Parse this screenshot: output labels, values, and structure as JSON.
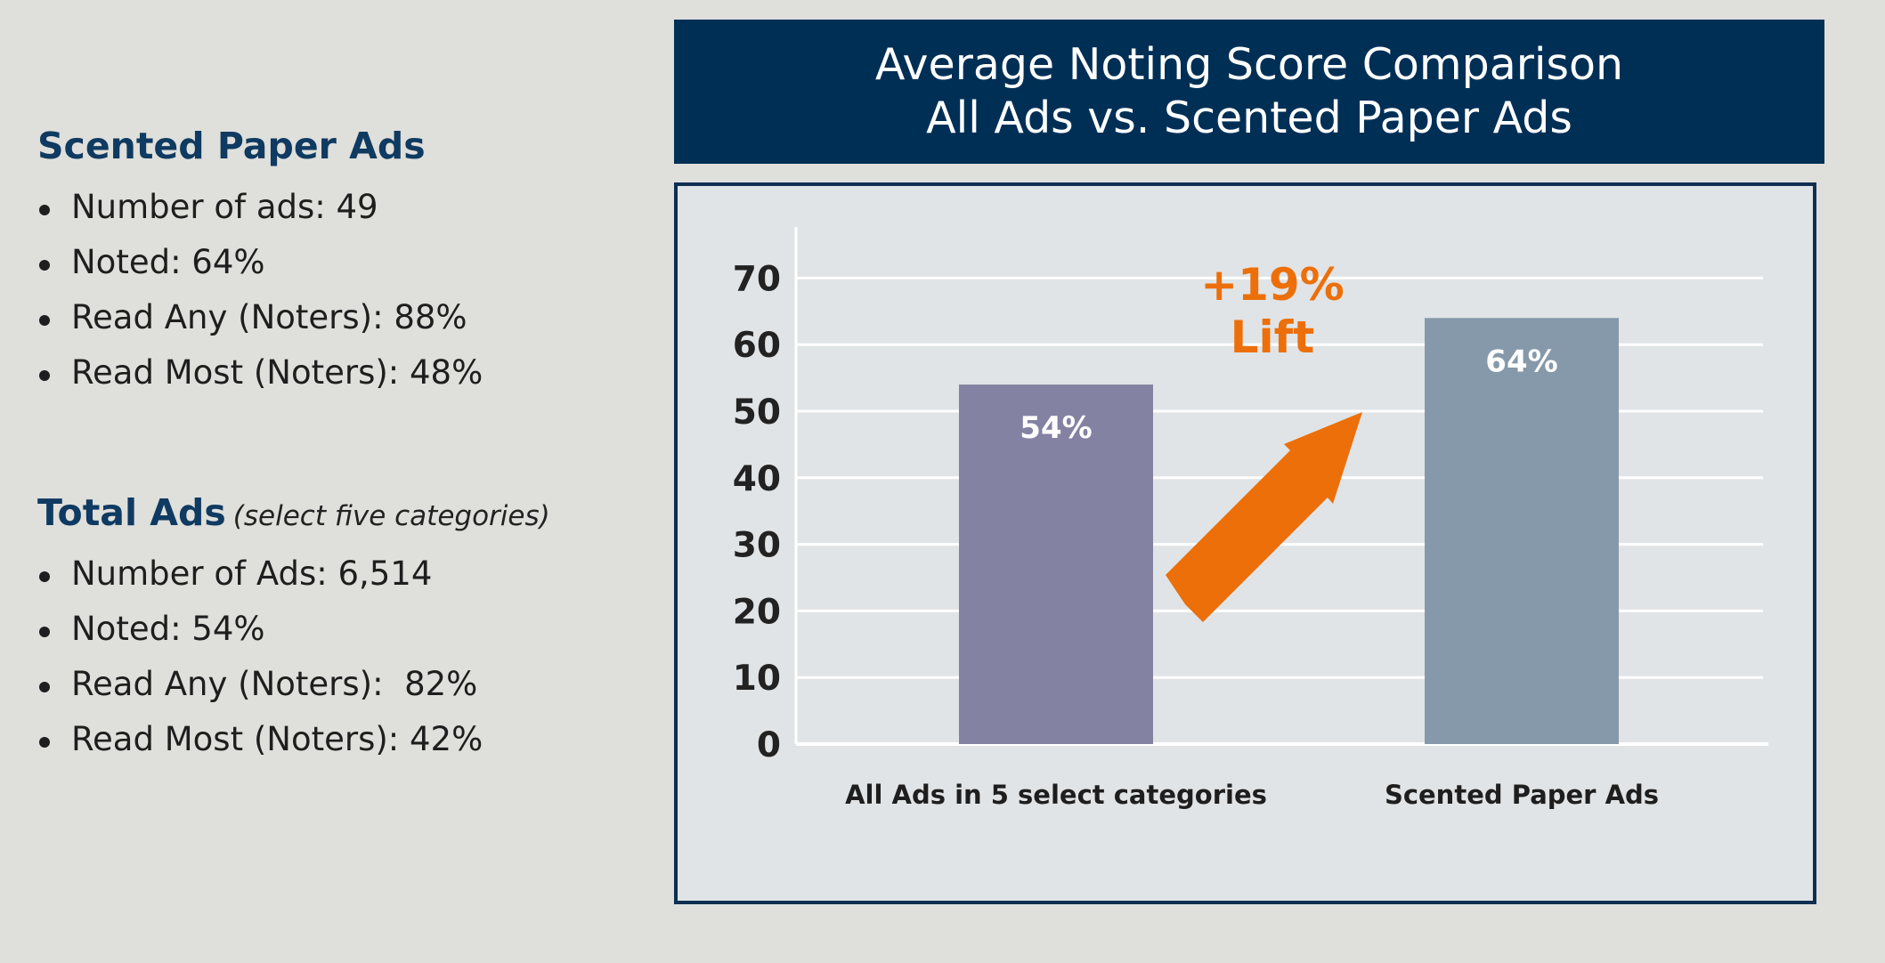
{
  "left_panel": {
    "scented": {
      "heading": "Scented Paper Ads",
      "items": [
        "Number of ads: 49",
        "Noted: 64%",
        "Read Any (Noters): 88%",
        "Read Most (Noters): 48%"
      ]
    },
    "total": {
      "heading": "Total Ads",
      "note": "(select five categories)",
      "items": [
        "Number of Ads: 6,514",
        "Noted: 54%",
        "Read Any (Noters):  82%",
        "Read Most (Noters): 42%"
      ]
    }
  },
  "chart_data": {
    "type": "bar",
    "title": "Average Noting Score Comparison",
    "subtitle": "All Ads vs. Scented Paper Ads",
    "categories": [
      "All Ads in 5 select categories",
      "Scented Paper Ads"
    ],
    "values": [
      54,
      64
    ],
    "data_labels": [
      "54%",
      "64%"
    ],
    "yticks": [
      0,
      10,
      20,
      30,
      40,
      50,
      60,
      70
    ],
    "ylim": [
      0,
      78
    ],
    "grid": true,
    "annotation": {
      "line1": "+19%",
      "line2": "Lift"
    },
    "colors": {
      "bars": [
        "#8482a3",
        "#8699aa"
      ],
      "arrow": "#ec6f0a",
      "annotation": "#ec6f0a",
      "grid": "#ffffff",
      "title_bg": "#002f56"
    }
  }
}
